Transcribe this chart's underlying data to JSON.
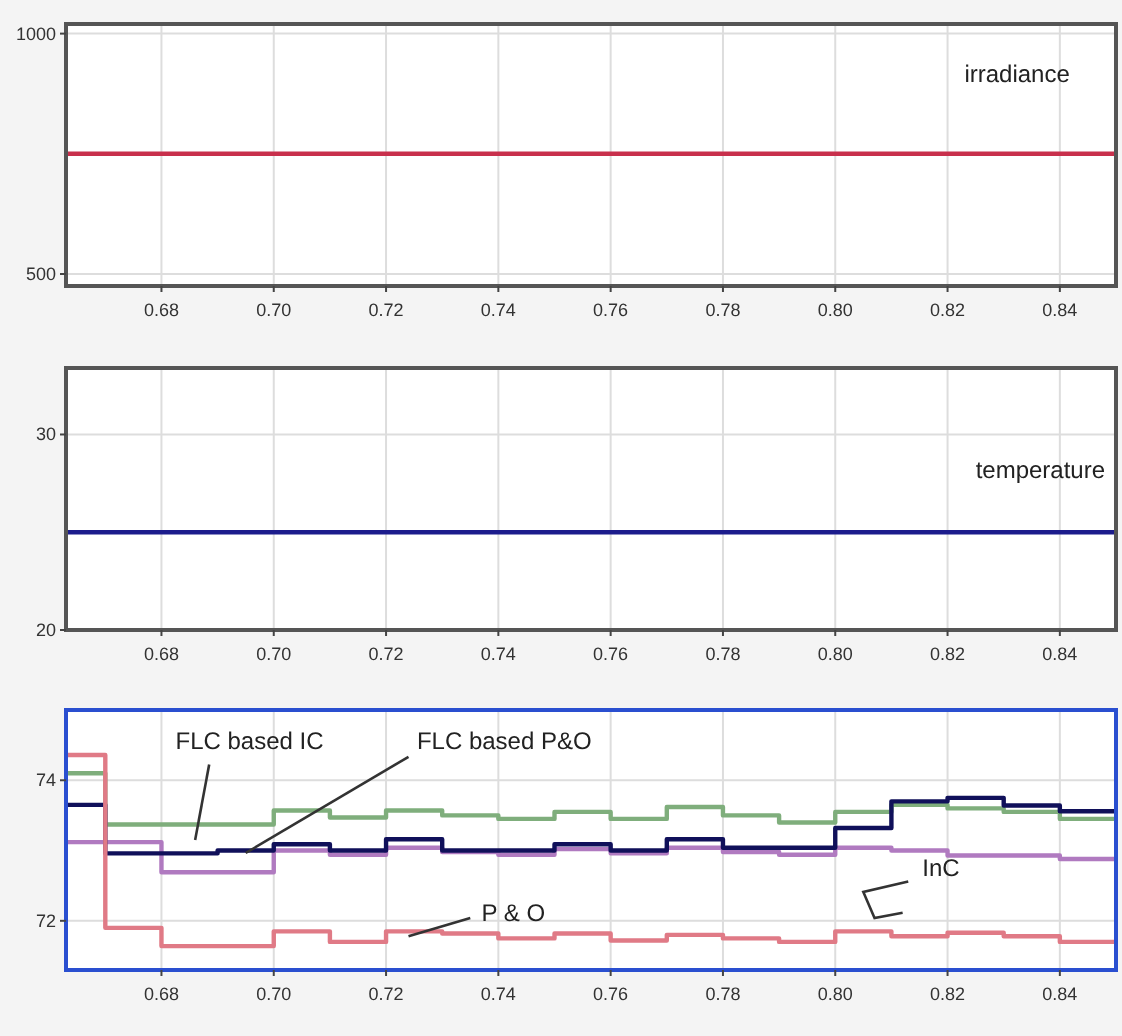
{
  "chart_data": [
    {
      "type": "line",
      "xlim": [
        0.663,
        0.85
      ],
      "xticks": [
        {
          "value": 0.68,
          "label": "0.68"
        },
        {
          "value": 0.7,
          "label": "0.70"
        },
        {
          "value": 0.72,
          "label": "0.72"
        },
        {
          "value": 0.74,
          "label": "0.74"
        },
        {
          "value": 0.76,
          "label": "0.76"
        },
        {
          "value": 0.78,
          "label": "0.78"
        },
        {
          "value": 0.8,
          "label": "0.80"
        },
        {
          "value": 0.82,
          "label": "0.82"
        },
        {
          "value": 0.84,
          "label": "0.84"
        }
      ],
      "ylim": [
        475,
        1020
      ],
      "yticks": [
        500,
        1000
      ],
      "grid": true,
      "series": [
        {
          "name": "irradiance",
          "color": "#c8304c",
          "x": [
            0.663,
            0.85
          ],
          "values": [
            750,
            750
          ]
        }
      ]
    },
    {
      "type": "line",
      "xlim": [
        0.663,
        0.85
      ],
      "xticks": [
        {
          "value": 0.68,
          "label": "0.68"
        },
        {
          "value": 0.7,
          "label": "0.70"
        },
        {
          "value": 0.72,
          "label": "0.72"
        },
        {
          "value": 0.74,
          "label": "0.74"
        },
        {
          "value": 0.76,
          "label": "0.76"
        },
        {
          "value": 0.78,
          "label": "0.78"
        },
        {
          "value": 0.8,
          "label": "0.80"
        },
        {
          "value": 0.82,
          "label": "0.82"
        },
        {
          "value": 0.84,
          "label": "0.84"
        }
      ],
      "ylim": [
        20,
        33.4
      ],
      "yticks": [
        20,
        30
      ],
      "grid": true,
      "series": [
        {
          "name": "temperature",
          "color": "#1c1c8c",
          "x": [
            0.663,
            0.85
          ],
          "values": [
            25,
            25
          ]
        }
      ]
    },
    {
      "type": "step",
      "xlim": [
        0.663,
        0.85
      ],
      "xticks": [
        {
          "value": 0.68,
          "label": "0.68"
        },
        {
          "value": 0.7,
          "label": "0.70"
        },
        {
          "value": 0.72,
          "label": "0.72"
        },
        {
          "value": 0.74,
          "label": "0.74"
        },
        {
          "value": 0.76,
          "label": "0.76"
        },
        {
          "value": 0.78,
          "label": "0.78"
        },
        {
          "value": 0.8,
          "label": "0.80"
        },
        {
          "value": 0.82,
          "label": "0.82"
        },
        {
          "value": 0.84,
          "label": "0.84"
        }
      ],
      "ylim": [
        71.3,
        75.0
      ],
      "yticks": [
        72,
        74
      ],
      "grid": true,
      "series": [
        {
          "name": "FLC based IC",
          "color": "#7fae7c",
          "x": [
            0.663,
            0.67,
            0.7,
            0.71,
            0.72,
            0.73,
            0.74,
            0.75,
            0.76,
            0.77,
            0.78,
            0.79,
            0.8,
            0.81,
            0.82,
            0.83,
            0.84,
            0.85
          ],
          "values": [
            74.1,
            73.37,
            73.57,
            73.47,
            73.57,
            73.5,
            73.45,
            73.55,
            73.45,
            73.62,
            73.5,
            73.4,
            73.55,
            73.65,
            73.6,
            73.55,
            73.45,
            73.45
          ]
        },
        {
          "name": "InC",
          "color": "#b07ac0",
          "x": [
            0.663,
            0.68,
            0.7,
            0.71,
            0.72,
            0.73,
            0.74,
            0.75,
            0.76,
            0.77,
            0.78,
            0.79,
            0.8,
            0.81,
            0.82,
            0.84,
            0.85
          ],
          "values": [
            73.12,
            72.69,
            73.0,
            72.94,
            73.04,
            72.98,
            72.94,
            73.02,
            72.96,
            73.04,
            72.98,
            72.94,
            73.04,
            73.0,
            72.93,
            72.88,
            72.88
          ]
        },
        {
          "name": "FLC based P&O",
          "color": "#10105a",
          "x": [
            0.663,
            0.67,
            0.69,
            0.7,
            0.71,
            0.72,
            0.73,
            0.75,
            0.76,
            0.77,
            0.78,
            0.8,
            0.81,
            0.82,
            0.83,
            0.84,
            0.85
          ],
          "values": [
            73.65,
            72.96,
            73.0,
            73.09,
            73.0,
            73.16,
            73.0,
            73.09,
            73.0,
            73.16,
            73.04,
            73.32,
            73.7,
            73.75,
            73.64,
            73.56,
            73.56
          ]
        },
        {
          "name": "P & O",
          "color": "#e07a86",
          "x": [
            0.663,
            0.67,
            0.68,
            0.7,
            0.71,
            0.72,
            0.73,
            0.74,
            0.75,
            0.76,
            0.77,
            0.78,
            0.79,
            0.8,
            0.81,
            0.82,
            0.83,
            0.84,
            0.85
          ],
          "values": [
            74.36,
            71.9,
            71.64,
            71.85,
            71.7,
            71.85,
            71.82,
            71.75,
            71.82,
            71.72,
            71.8,
            71.75,
            71.7,
            71.85,
            71.78,
            71.83,
            71.78,
            71.7,
            71.7
          ]
        }
      ]
    }
  ]
}
